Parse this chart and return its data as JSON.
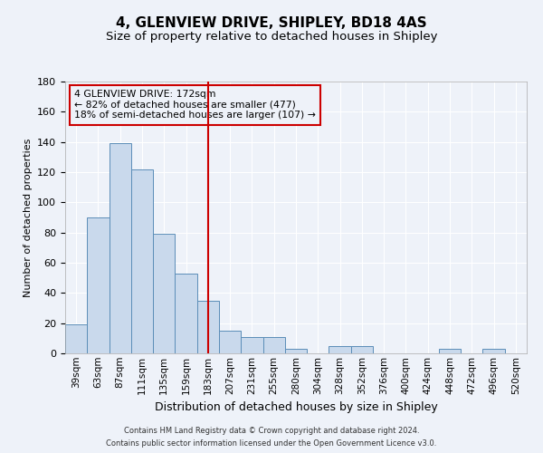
{
  "title": "4, GLENVIEW DRIVE, SHIPLEY, BD18 4AS",
  "subtitle": "Size of property relative to detached houses in Shipley",
  "xlabel": "Distribution of detached houses by size in Shipley",
  "ylabel": "Number of detached properties",
  "bar_labels": [
    "39sqm",
    "63sqm",
    "87sqm",
    "111sqm",
    "135sqm",
    "159sqm",
    "183sqm",
    "207sqm",
    "231sqm",
    "255sqm",
    "280sqm",
    "304sqm",
    "328sqm",
    "352sqm",
    "376sqm",
    "400sqm",
    "424sqm",
    "448sqm",
    "472sqm",
    "496sqm",
    "520sqm"
  ],
  "bar_values": [
    19,
    90,
    139,
    122,
    79,
    53,
    35,
    15,
    11,
    11,
    3,
    0,
    5,
    5,
    0,
    0,
    0,
    3,
    0,
    3,
    0
  ],
  "bar_color": "#c9d9ec",
  "bar_edge_color": "#5b8db8",
  "vline_x": 6.0,
  "vline_color": "#cc0000",
  "annotation_title": "4 GLENVIEW DRIVE: 172sqm",
  "annotation_line1": "← 82% of detached houses are smaller (477)",
  "annotation_line2": "18% of semi-detached houses are larger (107) →",
  "annotation_box_edge": "#cc0000",
  "ylim": [
    0,
    180
  ],
  "yticks": [
    0,
    20,
    40,
    60,
    80,
    100,
    120,
    140,
    160,
    180
  ],
  "footer1": "Contains HM Land Registry data © Crown copyright and database right 2024.",
  "footer2": "Contains public sector information licensed under the Open Government Licence v3.0.",
  "bg_color": "#eef2f9",
  "grid_color": "#ffffff",
  "title_fontsize": 11,
  "subtitle_fontsize": 9.5,
  "xlabel_fontsize": 9,
  "ylabel_fontsize": 8
}
